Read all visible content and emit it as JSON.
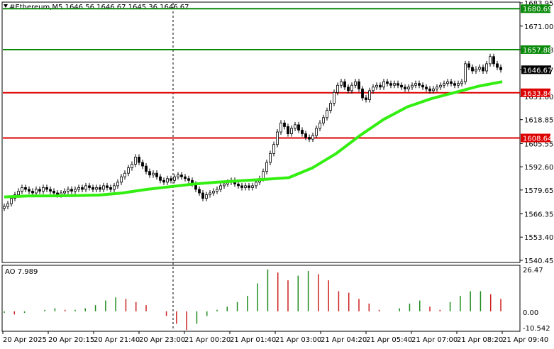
{
  "header": {
    "title": "#Ethereum,M5  1646.56 1646.67 1645.36 1646.67",
    "dropdown_glyph": "triangle-down-icon"
  },
  "colors": {
    "background": "#ffffff",
    "frame": "#000000",
    "candle": "#000000",
    "ma_line": "#33ee11",
    "resistance_line": "#0a8a0a",
    "support_line": "#dd0000",
    "ao_up": "#1e8b1e",
    "ao_down": "#cc2020",
    "price_tag_text": "#ffffff"
  },
  "price_axis": {
    "ticks": [
      "1683.95",
      "1671.00",
      "1657.88",
      "1646.67",
      "1631.80",
      "1618.85",
      "1605.55",
      "1592.60",
      "1579.65",
      "1566.35",
      "1553.40",
      "1540.45"
    ]
  },
  "levels": [
    {
      "name": "resistance-upper",
      "value": 1680.69,
      "label": "1680.69",
      "type": "resistance"
    },
    {
      "name": "resistance-lower",
      "value": 1657.88,
      "label": "1657.88",
      "type": "resistance"
    },
    {
      "name": "support-upper",
      "value": 1633.84,
      "label": "1633.84",
      "type": "support"
    },
    {
      "name": "support-lower",
      "value": 1608.64,
      "label": "1608.64",
      "type": "support"
    }
  ],
  "current_price": {
    "value": 1646.67,
    "label": "1646.67"
  },
  "time_axis": {
    "labels": [
      "20 Apr 2025",
      "20 Apr 20:15",
      "20 Apr 21:40",
      "20 Apr 23:00",
      "21 Apr 00:20",
      "21 Apr 01:40",
      "21 Apr 03:00",
      "21 Apr 04:20",
      "21 Apr 05:40",
      "21 Apr 07:00",
      "21 Apr 08:20",
      "21 Apr 09:40"
    ]
  },
  "indicator": {
    "label": "AO 7.989",
    "axis_labels": [
      "26.47",
      "0.00",
      "-10.542"
    ]
  },
  "chart_data": {
    "type": "candlestick",
    "title": "#Ethereum,M5",
    "ylim": [
      1540.45,
      1683.95
    ],
    "close_values": [
      1570.5,
      1572,
      1575,
      1577,
      1579,
      1581,
      1580,
      1579,
      1578,
      1580,
      1579,
      1581,
      1580,
      1579,
      1578,
      1577,
      1578,
      1579,
      1580,
      1579,
      1580,
      1581,
      1580,
      1582,
      1581,
      1580,
      1581,
      1580,
      1582,
      1581,
      1580,
      1582,
      1584,
      1587,
      1589,
      1592,
      1594,
      1598,
      1595,
      1593,
      1590,
      1588,
      1589,
      1587,
      1585,
      1584,
      1586,
      1585,
      1587,
      1588,
      1587,
      1586,
      1585,
      1583,
      1580,
      1578,
      1575,
      1577,
      1578,
      1579,
      1580,
      1582,
      1583,
      1584,
      1585,
      1583,
      1582,
      1581,
      1582,
      1581,
      1582,
      1584,
      1586,
      1590,
      1595,
      1600,
      1605,
      1612,
      1617,
      1615,
      1611,
      1614,
      1616,
      1613,
      1611,
      1609,
      1608,
      1610,
      1614,
      1617,
      1620,
      1624,
      1628,
      1634,
      1638,
      1640,
      1637,
      1635,
      1638,
      1640,
      1636,
      1631,
      1630,
      1635,
      1637,
      1638,
      1637,
      1640,
      1639,
      1638,
      1639,
      1638,
      1637,
      1636,
      1637,
      1638,
      1639,
      1638,
      1637,
      1636,
      1635,
      1636,
      1637,
      1638,
      1639,
      1640,
      1639,
      1638,
      1639,
      1640,
      1650,
      1648,
      1646,
      1647,
      1648,
      1646,
      1650,
      1654,
      1650,
      1648,
      1646.67
    ],
    "ma_values": [
      1575.8,
      1576.3,
      1576.4,
      1576.5,
      1576.8,
      1578,
      1580,
      1581.5,
      1583,
      1584,
      1584.8,
      1585.6,
      1586.5,
      1592,
      1600,
      1610,
      1619,
      1626,
      1630.5,
      1634,
      1637.5,
      1640
    ],
    "ao_values": [
      -1,
      -2,
      -1,
      0,
      1,
      2,
      1,
      1,
      2,
      4,
      7,
      9,
      8,
      6,
      4,
      0,
      -3,
      -8,
      -12,
      -8,
      -3,
      1,
      3,
      6,
      10,
      18,
      27,
      25,
      20,
      23,
      26,
      24,
      20,
      13,
      12,
      8,
      5,
      1,
      0,
      2,
      5,
      7,
      3,
      1,
      6,
      10,
      13,
      13,
      11,
      8
    ]
  }
}
